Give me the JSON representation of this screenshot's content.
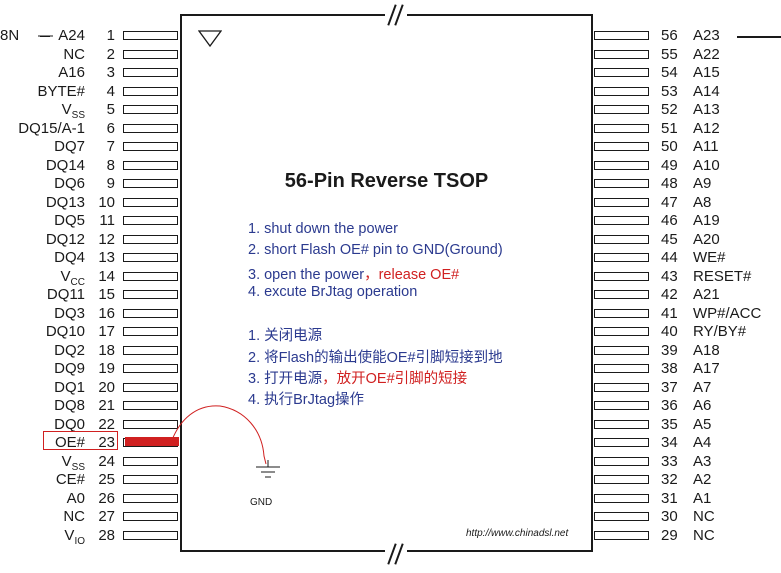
{
  "chip": {
    "title": "56-Pin Reverse TSOP",
    "left_pins": [
      {
        "num": "1",
        "label": "A24"
      },
      {
        "num": "2",
        "label": "NC"
      },
      {
        "num": "3",
        "label": "A16"
      },
      {
        "num": "4",
        "label": "BYTE#"
      },
      {
        "num": "5",
        "label": "V",
        "sub": "SS"
      },
      {
        "num": "6",
        "label": "DQ15/A-1"
      },
      {
        "num": "7",
        "label": "DQ7"
      },
      {
        "num": "8",
        "label": "DQ14"
      },
      {
        "num": "9",
        "label": "DQ6"
      },
      {
        "num": "10",
        "label": "DQ13"
      },
      {
        "num": "11",
        "label": "DQ5"
      },
      {
        "num": "12",
        "label": "DQ12"
      },
      {
        "num": "13",
        "label": "DQ4"
      },
      {
        "num": "14",
        "label": "V",
        "sub": "CC"
      },
      {
        "num": "15",
        "label": "DQ11"
      },
      {
        "num": "16",
        "label": "DQ3"
      },
      {
        "num": "17",
        "label": "DQ10"
      },
      {
        "num": "18",
        "label": "DQ2"
      },
      {
        "num": "19",
        "label": "DQ9"
      },
      {
        "num": "20",
        "label": "DQ1"
      },
      {
        "num": "21",
        "label": "DQ8"
      },
      {
        "num": "22",
        "label": "DQ0"
      },
      {
        "num": "23",
        "label": "OE#"
      },
      {
        "num": "24",
        "label": "V",
        "sub": "SS"
      },
      {
        "num": "25",
        "label": "CE#"
      },
      {
        "num": "26",
        "label": "A0"
      },
      {
        "num": "27",
        "label": "NC"
      },
      {
        "num": "28",
        "label": "V",
        "sub": "IO"
      }
    ],
    "right_pins": [
      {
        "num": "56",
        "label": "A23"
      },
      {
        "num": "55",
        "label": "A22"
      },
      {
        "num": "54",
        "label": "A15"
      },
      {
        "num": "53",
        "label": "A14"
      },
      {
        "num": "52",
        "label": "A13"
      },
      {
        "num": "51",
        "label": "A12"
      },
      {
        "num": "50",
        "label": "A11"
      },
      {
        "num": "49",
        "label": "A10"
      },
      {
        "num": "48",
        "label": "A9"
      },
      {
        "num": "47",
        "label": "A8"
      },
      {
        "num": "46",
        "label": "A19"
      },
      {
        "num": "45",
        "label": "A20"
      },
      {
        "num": "44",
        "label": "WE#"
      },
      {
        "num": "43",
        "label": "RESET#"
      },
      {
        "num": "42",
        "label": "A21"
      },
      {
        "num": "41",
        "label": "WP#/ACC"
      },
      {
        "num": "40",
        "label": "RY/BY#"
      },
      {
        "num": "39",
        "label": "A18"
      },
      {
        "num": "38",
        "label": "A17"
      },
      {
        "num": "37",
        "label": "A7"
      },
      {
        "num": "36",
        "label": "A6"
      },
      {
        "num": "35",
        "label": "A5"
      },
      {
        "num": "34",
        "label": "A4"
      },
      {
        "num": "33",
        "label": "A3"
      },
      {
        "num": "32",
        "label": "A2"
      },
      {
        "num": "31",
        "label": "A1"
      },
      {
        "num": "30",
        "label": "NC"
      },
      {
        "num": "29",
        "label": "NC"
      }
    ]
  },
  "clipped": {
    "top_left": "8N",
    "top_left_mark": "—"
  },
  "instructions_en": {
    "step1": "1. shut down the power",
    "step2": "2. short Flash OE# pin to GND(Ground)",
    "step3_a": "3. open the power",
    "step3_b": "，release OE#",
    "step4": "4. excute BrJtag operation"
  },
  "instructions_cn": {
    "step1": "1. 关闭电源",
    "step2": "2. 将Flash的输出使能OE#引脚短接到地",
    "step3_a": "3. 打开电源",
    "step3_b": "，放开OE#引脚的短接",
    "step4": "4. 执行BrJtag操作"
  },
  "gnd_label": "GND",
  "url": "http://www.chinadsl.net",
  "colors": {
    "accent_red": "#d02020",
    "instruction_blue": "#2b3a8f",
    "line": "#1a1a1a"
  }
}
